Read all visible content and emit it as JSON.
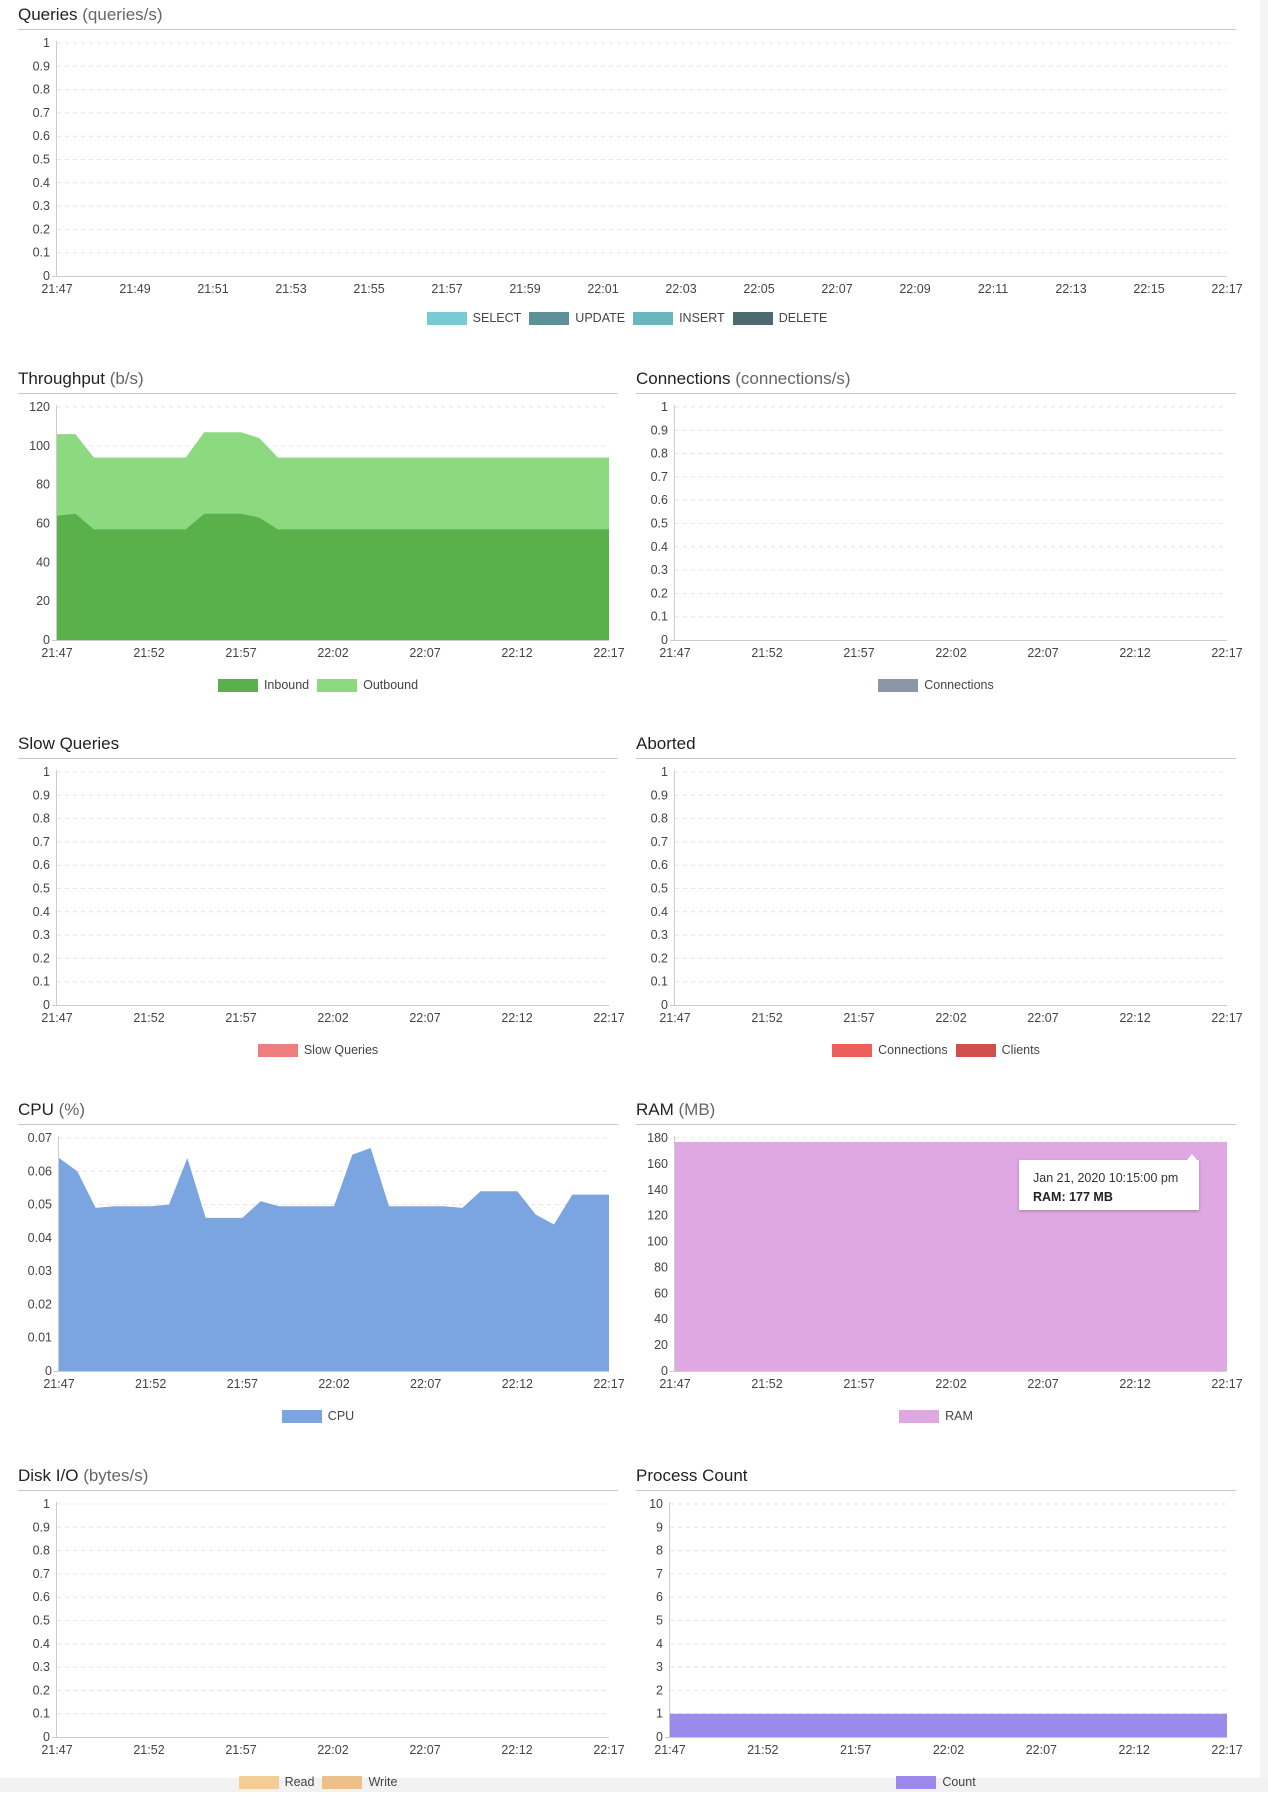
{
  "panels": {
    "queries": {
      "title": "Queries",
      "unit": "(queries/s)"
    },
    "throughput": {
      "title": "Throughput",
      "unit": "(b/s)"
    },
    "connections": {
      "title": "Connections",
      "unit": "(connections/s)"
    },
    "slow_queries": {
      "title": "Slow Queries",
      "unit": ""
    },
    "aborted": {
      "title": "Aborted",
      "unit": ""
    },
    "cpu": {
      "title": "CPU",
      "unit": "(%)"
    },
    "ram": {
      "title": "RAM",
      "unit": "(MB)"
    },
    "disk_io": {
      "title": "Disk I/O",
      "unit": "(bytes/s)"
    },
    "process_count": {
      "title": "Process Count",
      "unit": ""
    }
  },
  "tooltip": {
    "date": "Jan 21, 2020 10:15:00 pm",
    "value": "RAM: 177 MB"
  },
  "chart_data": [
    {
      "id": "queries",
      "type": "area",
      "ylim": [
        0,
        1
      ],
      "yticks": [
        "0",
        "0.1",
        "0.2",
        "0.3",
        "0.4",
        "0.5",
        "0.6",
        "0.7",
        "0.8",
        "0.9",
        "1"
      ],
      "xticks": [
        "21:47",
        "21:49",
        "21:51",
        "21:53",
        "21:55",
        "21:57",
        "21:59",
        "22:01",
        "22:03",
        "22:05",
        "22:07",
        "22:09",
        "22:11",
        "22:13",
        "22:15",
        "22:17"
      ],
      "grid": true,
      "legend": "bottom",
      "series": [
        {
          "name": "SELECT",
          "color": "#79cbd3",
          "values": []
        },
        {
          "name": "UPDATE",
          "color": "#5f8f96",
          "values": []
        },
        {
          "name": "INSERT",
          "color": "#6bb5bd",
          "values": []
        },
        {
          "name": "DELETE",
          "color": "#4d6a70",
          "values": []
        }
      ]
    },
    {
      "id": "throughput",
      "type": "area",
      "stacked": true,
      "ylim": [
        0,
        120
      ],
      "yticks": [
        "0",
        "20",
        "40",
        "60",
        "80",
        "100",
        "120"
      ],
      "xticks": [
        "21:47",
        "21:52",
        "21:57",
        "22:02",
        "22:07",
        "22:12",
        "22:17"
      ],
      "grid": true,
      "legend": "bottom",
      "x": [
        "21:47",
        "21:48",
        "21:49",
        "21:50",
        "21:51",
        "21:52",
        "21:53",
        "21:54",
        "21:55",
        "21:56",
        "21:57",
        "21:58",
        "21:59",
        "22:00",
        "22:01",
        "22:02",
        "22:03",
        "22:04",
        "22:05",
        "22:06",
        "22:07",
        "22:08",
        "22:09",
        "22:10",
        "22:11",
        "22:12",
        "22:13",
        "22:14",
        "22:15",
        "22:16",
        "22:17"
      ],
      "series": [
        {
          "name": "Inbound",
          "color": "#5ab04a",
          "values": [
            64,
            65,
            57,
            57,
            57,
            57,
            57,
            57,
            65,
            65,
            65,
            63,
            57,
            57,
            57,
            57,
            57,
            57,
            57,
            57,
            57,
            57,
            57,
            57,
            57,
            57,
            57,
            57,
            57,
            57,
            57
          ]
        },
        {
          "name": "Outbound",
          "color": "#8cd97f",
          "values": [
            42,
            41,
            37,
            37,
            37,
            37,
            37,
            37,
            42,
            42,
            42,
            41,
            37,
            37,
            37,
            37,
            37,
            37,
            37,
            37,
            37,
            37,
            37,
            37,
            37,
            37,
            37,
            37,
            37,
            37,
            37
          ]
        }
      ]
    },
    {
      "id": "connections",
      "type": "area",
      "ylim": [
        0,
        1
      ],
      "yticks": [
        "0",
        "0.1",
        "0.2",
        "0.3",
        "0.4",
        "0.5",
        "0.6",
        "0.7",
        "0.8",
        "0.9",
        "1"
      ],
      "xticks": [
        "21:47",
        "21:52",
        "21:57",
        "22:02",
        "22:07",
        "22:12",
        "22:17"
      ],
      "grid": true,
      "legend": "bottom",
      "series": [
        {
          "name": "Connections",
          "color": "#8b96a8",
          "values": []
        }
      ]
    },
    {
      "id": "slow_queries",
      "type": "area",
      "ylim": [
        0,
        1
      ],
      "yticks": [
        "0",
        "0.1",
        "0.2",
        "0.3",
        "0.4",
        "0.5",
        "0.6",
        "0.7",
        "0.8",
        "0.9",
        "1"
      ],
      "xticks": [
        "21:47",
        "21:52",
        "21:57",
        "22:02",
        "22:07",
        "22:12",
        "22:17"
      ],
      "grid": true,
      "legend": "bottom",
      "series": [
        {
          "name": "Slow Queries",
          "color": "#ef7f7f",
          "values": []
        }
      ]
    },
    {
      "id": "aborted",
      "type": "area",
      "ylim": [
        0,
        1
      ],
      "yticks": [
        "0",
        "0.1",
        "0.2",
        "0.3",
        "0.4",
        "0.5",
        "0.6",
        "0.7",
        "0.8",
        "0.9",
        "1"
      ],
      "xticks": [
        "21:47",
        "21:52",
        "21:57",
        "22:02",
        "22:07",
        "22:12",
        "22:17"
      ],
      "grid": true,
      "legend": "bottom",
      "series": [
        {
          "name": "Connections",
          "color": "#ec5f5a",
          "values": []
        },
        {
          "name": "Clients",
          "color": "#d24f4f",
          "values": []
        }
      ]
    },
    {
      "id": "cpu",
      "type": "area",
      "ylim": [
        0,
        0.07
      ],
      "yticks": [
        "0",
        "0.01",
        "0.02",
        "0.03",
        "0.04",
        "0.05",
        "0.06",
        "0.07"
      ],
      "xticks": [
        "21:47",
        "21:52",
        "21:57",
        "22:02",
        "22:07",
        "22:12",
        "22:17"
      ],
      "grid": true,
      "legend": "bottom",
      "x": [
        "21:47",
        "21:48",
        "21:49",
        "21:50",
        "21:51",
        "21:52",
        "21:53",
        "21:54",
        "21:55",
        "21:56",
        "21:57",
        "21:58",
        "21:59",
        "22:00",
        "22:01",
        "22:02",
        "22:03",
        "22:04",
        "22:05",
        "22:06",
        "22:07",
        "22:08",
        "22:09",
        "22:10",
        "22:11",
        "22:12",
        "22:13",
        "22:14",
        "22:15",
        "22:16",
        "22:17"
      ],
      "series": [
        {
          "name": "CPU",
          "color": "#7ba5e0",
          "values": [
            0.064,
            0.06,
            0.049,
            0.0495,
            0.0495,
            0.0495,
            0.05,
            0.064,
            0.046,
            0.046,
            0.046,
            0.051,
            0.0495,
            0.0495,
            0.0495,
            0.0495,
            0.065,
            0.067,
            0.0495,
            0.0495,
            0.0495,
            0.0495,
            0.049,
            0.054,
            0.054,
            0.054,
            0.047,
            0.044,
            0.053,
            0.053,
            0.053
          ]
        }
      ]
    },
    {
      "id": "ram",
      "type": "area",
      "ylim": [
        0,
        180
      ],
      "yticks": [
        "0",
        "20",
        "40",
        "60",
        "80",
        "100",
        "120",
        "140",
        "160",
        "180"
      ],
      "xticks": [
        "21:47",
        "21:52",
        "21:57",
        "22:02",
        "22:07",
        "22:12",
        "22:17"
      ],
      "grid": true,
      "legend": "bottom",
      "x": [
        "21:47",
        "22:17"
      ],
      "series": [
        {
          "name": "RAM",
          "color": "#dfa8e2",
          "values": [
            177,
            177
          ]
        }
      ]
    },
    {
      "id": "disk_io",
      "type": "area",
      "ylim": [
        0,
        1
      ],
      "yticks": [
        "0",
        "0.1",
        "0.2",
        "0.3",
        "0.4",
        "0.5",
        "0.6",
        "0.7",
        "0.8",
        "0.9",
        "1"
      ],
      "xticks": [
        "21:47",
        "21:52",
        "21:57",
        "22:02",
        "22:07",
        "22:12",
        "22:17"
      ],
      "grid": true,
      "legend": "bottom",
      "series": [
        {
          "name": "Read",
          "color": "#f3cd94",
          "values": []
        },
        {
          "name": "Write",
          "color": "#ecc08a",
          "values": []
        }
      ]
    },
    {
      "id": "process_count",
      "type": "area",
      "ylim": [
        0,
        10
      ],
      "yticks": [
        "0",
        "1",
        "2",
        "3",
        "4",
        "5",
        "6",
        "7",
        "8",
        "9",
        "10"
      ],
      "xticks": [
        "21:47",
        "21:52",
        "21:57",
        "22:02",
        "22:07",
        "22:12",
        "22:17"
      ],
      "grid": true,
      "legend": "bottom",
      "x": [
        "21:47",
        "22:17"
      ],
      "series": [
        {
          "name": "Count",
          "color": "#9b8aeb",
          "values": [
            1,
            1
          ]
        }
      ]
    }
  ]
}
